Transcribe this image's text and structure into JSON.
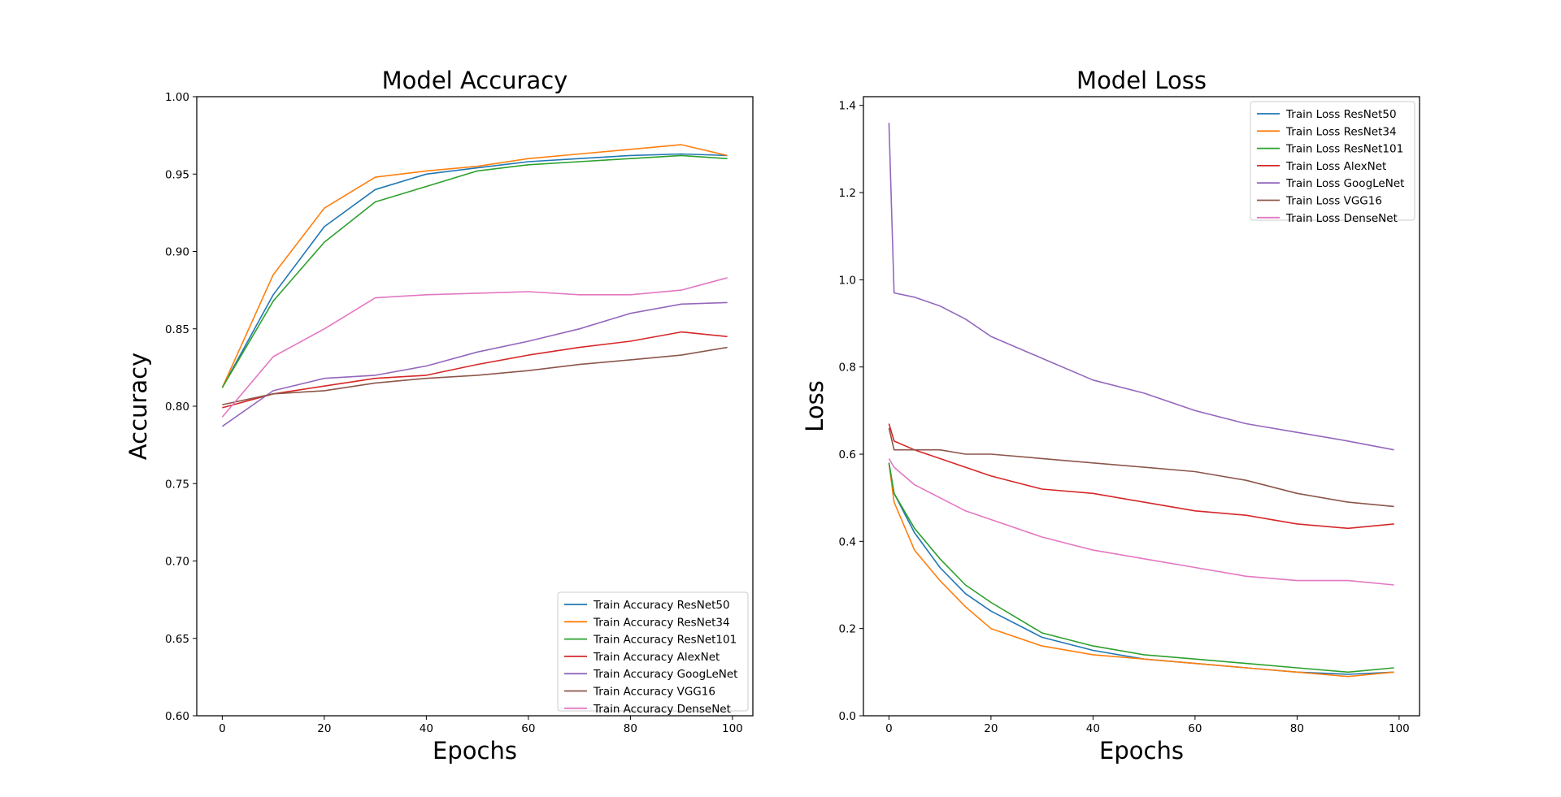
{
  "chart_data": [
    {
      "type": "line",
      "title": "Model Accuracy",
      "xlabel": "Epochs",
      "ylabel": "Accuracy",
      "xlim": [
        -5,
        104
      ],
      "ylim": [
        0.6,
        1.0
      ],
      "xticks": [
        "0",
        "20",
        "40",
        "60",
        "80",
        "100"
      ],
      "yticks": [
        "0.60",
        "0.65",
        "0.70",
        "0.75",
        "0.80",
        "0.85",
        "0.90",
        "0.95",
        "1.00"
      ],
      "grid": false,
      "legend_position": "bottom-right",
      "x": [
        0,
        10,
        20,
        30,
        40,
        50,
        60,
        70,
        80,
        90,
        99
      ],
      "series": [
        {
          "name": "Train Accuracy ResNet50",
          "color": "#1f77b4",
          "values": [
            0.812,
            0.872,
            0.916,
            0.94,
            0.95,
            0.954,
            0.958,
            0.96,
            0.962,
            0.963,
            0.962
          ]
        },
        {
          "name": "Train Accuracy ResNet34",
          "color": "#ff7f0e",
          "values": [
            0.812,
            0.885,
            0.928,
            0.948,
            0.952,
            0.955,
            0.96,
            0.963,
            0.966,
            0.969,
            0.962
          ]
        },
        {
          "name": "Train Accuracy ResNet101",
          "color": "#2ca02c",
          "values": [
            0.812,
            0.868,
            0.906,
            0.932,
            0.942,
            0.952,
            0.956,
            0.958,
            0.96,
            0.962,
            0.96
          ]
        },
        {
          "name": "Train Accuracy AlexNet",
          "color": "#d62728",
          "values": [
            0.799,
            0.808,
            0.813,
            0.818,
            0.82,
            0.827,
            0.833,
            0.838,
            0.842,
            0.848,
            0.845
          ]
        },
        {
          "name": "Train Accuracy GoogLeNet",
          "color": "#9467bd",
          "values": [
            0.787,
            0.81,
            0.818,
            0.82,
            0.826,
            0.835,
            0.842,
            0.85,
            0.86,
            0.866,
            0.867
          ]
        },
        {
          "name": "Train Accuracy VGG16",
          "color": "#8c564b",
          "values": [
            0.801,
            0.808,
            0.81,
            0.815,
            0.818,
            0.82,
            0.823,
            0.827,
            0.83,
            0.833,
            0.838
          ]
        },
        {
          "name": "Train Accuracy DenseNet",
          "color": "#e377c2",
          "values": [
            0.793,
            0.832,
            0.85,
            0.87,
            0.872,
            0.873,
            0.874,
            0.872,
            0.872,
            0.875,
            0.883
          ]
        }
      ]
    },
    {
      "type": "line",
      "title": "Model Loss",
      "xlabel": "Epochs",
      "ylabel": "Loss",
      "xlim": [
        -5,
        104
      ],
      "ylim": [
        0.0,
        1.42
      ],
      "xticks": [
        "0",
        "20",
        "40",
        "60",
        "80",
        "100"
      ],
      "yticks": [
        "0.0",
        "0.2",
        "0.4",
        "0.6",
        "0.8",
        "1.0",
        "1.2",
        "1.4"
      ],
      "grid": false,
      "legend_position": "top-right",
      "x": [
        0,
        1,
        5,
        10,
        15,
        20,
        30,
        40,
        50,
        60,
        70,
        80,
        90,
        99
      ],
      "series": [
        {
          "name": "Train Loss ResNet50",
          "color": "#1f77b4",
          "values": [
            0.58,
            0.51,
            0.42,
            0.34,
            0.28,
            0.24,
            0.18,
            0.15,
            0.13,
            0.12,
            0.11,
            0.1,
            0.095,
            0.1
          ]
        },
        {
          "name": "Train Loss ResNet34",
          "color": "#ff7f0e",
          "values": [
            0.58,
            0.49,
            0.38,
            0.31,
            0.25,
            0.2,
            0.16,
            0.14,
            0.13,
            0.12,
            0.11,
            0.1,
            0.09,
            0.1
          ]
        },
        {
          "name": "Train Loss ResNet101",
          "color": "#2ca02c",
          "values": [
            0.58,
            0.51,
            0.43,
            0.36,
            0.3,
            0.26,
            0.19,
            0.16,
            0.14,
            0.13,
            0.12,
            0.11,
            0.1,
            0.11
          ]
        },
        {
          "name": "Train Loss AlexNet",
          "color": "#d62728",
          "values": [
            0.67,
            0.63,
            0.61,
            0.59,
            0.57,
            0.55,
            0.52,
            0.51,
            0.49,
            0.47,
            0.46,
            0.44,
            0.43,
            0.44
          ]
        },
        {
          "name": "Train Loss GoogLeNet",
          "color": "#9467bd",
          "values": [
            1.36,
            0.97,
            0.96,
            0.94,
            0.91,
            0.87,
            0.82,
            0.77,
            0.74,
            0.7,
            0.67,
            0.65,
            0.63,
            0.61
          ]
        },
        {
          "name": "Train Loss VGG16",
          "color": "#8c564b",
          "values": [
            0.66,
            0.61,
            0.61,
            0.61,
            0.6,
            0.6,
            0.59,
            0.58,
            0.57,
            0.56,
            0.54,
            0.51,
            0.49,
            0.48
          ]
        },
        {
          "name": "Train Loss DenseNet",
          "color": "#e377c2",
          "values": [
            0.59,
            0.57,
            0.53,
            0.5,
            0.47,
            0.45,
            0.41,
            0.38,
            0.36,
            0.34,
            0.32,
            0.31,
            0.31,
            0.3
          ]
        }
      ]
    }
  ]
}
